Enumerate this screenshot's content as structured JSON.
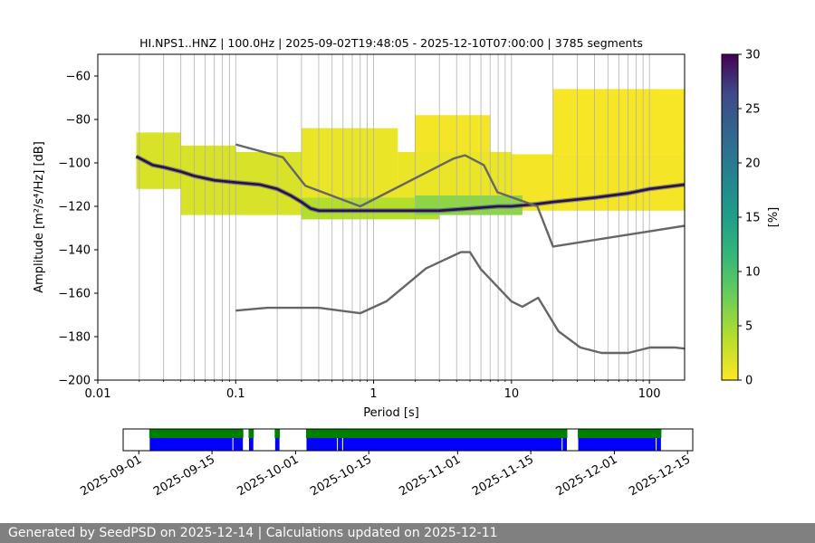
{
  "chart_data": [
    {
      "type": "heatmap",
      "title": "HI.NPS1..HNZ | 100.0Hz | 2025-09-02T19:48:05 - 2025-12-10T07:00:00 | 3785 segments",
      "xlabel": "Period [s]",
      "ylabel": "Amplitude [m²/s⁴/Hz] [dB]",
      "x_scale": "log",
      "xlim": [
        0.01,
        180
      ],
      "ylim": [
        -200,
        -50
      ],
      "x_ticks": [
        {
          "value": 0.01,
          "label": "0.01"
        },
        {
          "value": 0.1,
          "label": "0.1"
        },
        {
          "value": 1,
          "label": "1"
        },
        {
          "value": 10,
          "label": "10"
        },
        {
          "value": 100,
          "label": "100"
        }
      ],
      "y_ticks": [
        {
          "value": -60,
          "label": "−60"
        },
        {
          "value": -80,
          "label": "−80"
        },
        {
          "value": -100,
          "label": "−100"
        },
        {
          "value": -120,
          "label": "−120"
        },
        {
          "value": -140,
          "label": "−140"
        },
        {
          "value": -160,
          "label": "−160"
        },
        {
          "value": -180,
          "label": "−180"
        },
        {
          "value": -200,
          "label": "−200"
        }
      ],
      "grid": "vertical-minor",
      "colorbar": {
        "label": "[%]",
        "range": [
          0,
          30
        ],
        "ticks": [
          0,
          5,
          10,
          15,
          20,
          25,
          30
        ],
        "colormap": "viridis_r"
      },
      "mode_curve": {
        "name": "most probable value",
        "x": [
          0.019,
          0.025,
          0.03,
          0.04,
          0.05,
          0.07,
          0.1,
          0.15,
          0.2,
          0.25,
          0.3,
          0.35,
          0.4,
          0.5,
          0.7,
          1,
          1.5,
          2,
          3,
          5,
          8,
          10,
          15,
          20,
          40,
          70,
          100,
          180
        ],
        "y": [
          -97,
          -101,
          -102,
          -104,
          -106,
          -108,
          -109,
          -110,
          -112,
          -115,
          -118,
          -121,
          -122,
          -122,
          -122,
          -122,
          -122,
          -122,
          -122,
          -121,
          -120,
          -120,
          -119,
          -118,
          -116,
          -114,
          -112,
          -110
        ]
      },
      "density": [
        {
          "x": [
            0.019,
            0.04
          ],
          "y": [
            -112,
            -86
          ],
          "level": 2
        },
        {
          "x": [
            0.04,
            0.1
          ],
          "y": [
            -124,
            -92
          ],
          "level": 2
        },
        {
          "x": [
            0.1,
            0.3
          ],
          "y": [
            -124,
            -95
          ],
          "level": 2
        },
        {
          "x": [
            0.3,
            1.5
          ],
          "y": [
            -124,
            -84
          ],
          "level": 1
        },
        {
          "x": [
            1.5,
            10
          ],
          "y": [
            -123,
            -95
          ],
          "level": 1
        },
        {
          "x": [
            2,
            7
          ],
          "y": [
            -95,
            -78
          ],
          "level": 0.5
        },
        {
          "x": [
            10,
            180
          ],
          "y": [
            -122,
            -96
          ],
          "level": 0.5
        },
        {
          "x": [
            20,
            180
          ],
          "y": [
            -96,
            -66
          ],
          "level": 0.3
        },
        {
          "x": [
            0.3,
            3
          ],
          "y": [
            -126,
            -116
          ],
          "level": 4
        },
        {
          "x": [
            2,
            12
          ],
          "y": [
            -124,
            -115
          ],
          "level": 6
        }
      ],
      "noise_models": [
        {
          "name": "NHNM",
          "x": [
            0.1,
            0.22,
            0.32,
            0.8,
            3.8,
            4.6,
            6.3,
            7.9,
            15.4,
            20,
            354.8
          ],
          "y": [
            -91.5,
            -97.4,
            -110.5,
            -120,
            -98,
            -96.5,
            -101,
            -113.5,
            -120,
            -138.5,
            -126
          ]
        },
        {
          "name": "NLNM",
          "x": [
            0.1,
            0.17,
            0.4,
            0.8,
            1.24,
            2.4,
            4.3,
            5,
            6,
            10,
            12,
            15.6,
            21.9,
            31.6,
            45,
            70,
            101,
            154,
            180
          ],
          "y": [
            -168,
            -166.7,
            -166.7,
            -169.2,
            -163.7,
            -148.6,
            -141.1,
            -141.1,
            -149,
            -163.8,
            -166.2,
            -162.1,
            -177.5,
            -185,
            -187.5,
            -187.5,
            -185,
            -185,
            -185.5
          ]
        }
      ]
    },
    {
      "type": "timeline",
      "x_ticks": [
        {
          "value": "2025-09-01",
          "label": "2025-09-01"
        },
        {
          "value": "2025-09-15",
          "label": "2025-09-15"
        },
        {
          "value": "2025-10-01",
          "label": "2025-10-01"
        },
        {
          "value": "2025-10-15",
          "label": "2025-10-15"
        },
        {
          "value": "2025-11-01",
          "label": "2025-11-01"
        },
        {
          "value": "2025-11-15",
          "label": "2025-11-15"
        },
        {
          "value": "2025-12-01",
          "label": "2025-12-01"
        },
        {
          "value": "2025-12-15",
          "label": "2025-12-15"
        }
      ],
      "xlim": [
        "2025-08-29",
        "2025-12-16"
      ],
      "colors": {
        "available": "#008000",
        "used": "#0000ff",
        "gaps": "#ffffff"
      },
      "available_segments": [
        [
          "2025-09-03",
          "2025-09-21"
        ],
        [
          "2025-09-22",
          "2025-09-23"
        ],
        [
          "2025-09-27",
          "2025-09-28"
        ],
        [
          "2025-10-03",
          "2025-11-22"
        ],
        [
          "2025-11-24",
          "2025-12-10"
        ]
      ],
      "used_segments": [
        [
          "2025-09-03",
          "2025-09-19"
        ],
        [
          "2025-09-19",
          "2025-09-21"
        ],
        [
          "2025-09-22",
          "2025-09-23"
        ],
        [
          "2025-09-27",
          "2025-09-28"
        ],
        [
          "2025-10-03",
          "2025-10-09"
        ],
        [
          "2025-10-09",
          "2025-10-10"
        ],
        [
          "2025-10-10",
          "2025-11-21"
        ],
        [
          "2025-11-21",
          "2025-11-22"
        ],
        [
          "2025-11-24",
          "2025-12-09"
        ],
        [
          "2025-12-09",
          "2025-12-10"
        ]
      ]
    }
  ],
  "footer": {
    "text": "Generated by SeedPSD on 2025-12-14 | Calculations updated on 2025-12-11"
  }
}
